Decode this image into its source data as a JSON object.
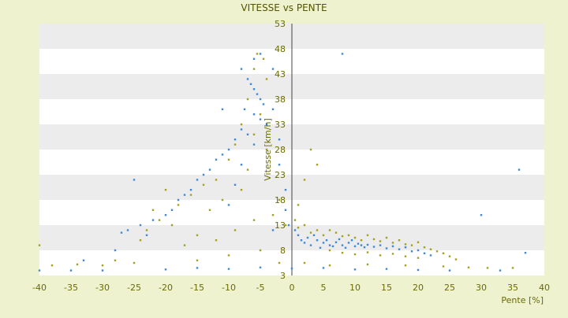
{
  "chart_data": {
    "type": "scatter",
    "title": "VITESSE vs PENTE",
    "xlabel": "Pente [%]",
    "ylabel": "Vitesse [km/h]",
    "xlim": [
      -40,
      40
    ],
    "ylim": [
      3,
      53
    ],
    "xticks": [
      "-40",
      "-35",
      "-30",
      "-25",
      "-20",
      "-15",
      "-10",
      "-5",
      "0",
      "5",
      "10",
      "15",
      "20",
      "25",
      "30",
      "35",
      "40"
    ],
    "yticks": [
      "3",
      "8",
      "13",
      "18",
      "23",
      "28",
      "33",
      "38",
      "43",
      "48",
      "53"
    ],
    "grid": "alternating horizontal bands",
    "legend": "none",
    "colors": {
      "series_a": "#3b8ad9",
      "series_b": "#a3a01f",
      "background": "#eef2cf",
      "band": "#ececec",
      "axis_text": "#6b6b00",
      "zero_line": "#444444"
    },
    "series": [
      {
        "color": "#3b8ad9",
        "points": [
          [
            -8,
            44
          ],
          [
            -7,
            42
          ],
          [
            -6.5,
            41
          ],
          [
            -6,
            40
          ],
          [
            -5.5,
            39
          ],
          [
            -5,
            38
          ],
          [
            -4.5,
            37
          ],
          [
            -7.5,
            36
          ],
          [
            -6,
            35
          ],
          [
            -5,
            34
          ],
          [
            -4,
            33
          ],
          [
            -8,
            32
          ],
          [
            -7,
            31
          ],
          [
            -9,
            30
          ],
          [
            -6,
            29
          ],
          [
            -10,
            28
          ],
          [
            -11,
            27
          ],
          [
            -12,
            26
          ],
          [
            -8,
            25
          ],
          [
            -13,
            24
          ],
          [
            -14,
            23
          ],
          [
            -15,
            22
          ],
          [
            -9,
            21
          ],
          [
            -16,
            20
          ],
          [
            -17,
            19
          ],
          [
            -18,
            18
          ],
          [
            -10,
            17
          ],
          [
            -19,
            16
          ],
          [
            -20,
            15
          ],
          [
            -22,
            14
          ],
          [
            -24,
            13
          ],
          [
            -26,
            12
          ],
          [
            -27,
            11.5
          ],
          [
            -25,
            22
          ],
          [
            -11,
            36
          ],
          [
            -6,
            46
          ],
          [
            -5,
            47
          ],
          [
            -3,
            44
          ],
          [
            -3,
            36
          ],
          [
            -2,
            30
          ],
          [
            -2,
            25
          ],
          [
            -1,
            20
          ],
          [
            -1,
            16
          ],
          [
            -0.5,
            13
          ],
          [
            0.5,
            12
          ],
          [
            1,
            11
          ],
          [
            1.5,
            10
          ],
          [
            2,
            9.5
          ],
          [
            2.5,
            10.5
          ],
          [
            3,
            9
          ],
          [
            3.5,
            11
          ],
          [
            4,
            10
          ],
          [
            4.5,
            8.5
          ],
          [
            5,
            9.5
          ],
          [
            5.5,
            10
          ],
          [
            6,
            9
          ],
          [
            6.5,
            8.8
          ],
          [
            7,
            9.6
          ],
          [
            7.5,
            10.2
          ],
          [
            8,
            9
          ],
          [
            8.5,
            8.5
          ],
          [
            9,
            9.5
          ],
          [
            9.5,
            10
          ],
          [
            10,
            8.8
          ],
          [
            10.5,
            9.3
          ],
          [
            11,
            9
          ],
          [
            11.5,
            8.6
          ],
          [
            12,
            9.1
          ],
          [
            13,
            8.7
          ],
          [
            14,
            9
          ],
          [
            15,
            8.4
          ],
          [
            16,
            8.8
          ],
          [
            17,
            8.2
          ],
          [
            18,
            8.6
          ],
          [
            19,
            7.8
          ],
          [
            20,
            8
          ],
          [
            21,
            7.4
          ],
          [
            22,
            7
          ],
          [
            8,
            47
          ],
          [
            36,
            24
          ],
          [
            30,
            15
          ],
          [
            37,
            7.5
          ],
          [
            25,
            4
          ],
          [
            -30,
            4
          ],
          [
            -35,
            4
          ],
          [
            -40,
            4
          ],
          [
            -20,
            4.2
          ],
          [
            -10,
            4.3
          ],
          [
            0,
            4.4
          ],
          [
            10,
            4.2
          ],
          [
            20,
            4.1
          ],
          [
            33,
            4
          ],
          [
            -33,
            6
          ],
          [
            -28,
            8
          ],
          [
            -23,
            11
          ],
          [
            -15,
            4.5
          ],
          [
            -5,
            4.6
          ],
          [
            5,
            4.5
          ],
          [
            15,
            4.3
          ],
          [
            -3,
            12
          ]
        ]
      },
      {
        "color": "#a3a01f",
        "points": [
          [
            -5.5,
            47
          ],
          [
            -4.5,
            46
          ],
          [
            -6,
            44
          ],
          [
            -4,
            42
          ],
          [
            -7,
            38
          ],
          [
            -5,
            35
          ],
          [
            -8,
            33
          ],
          [
            -6,
            31
          ],
          [
            -9,
            29
          ],
          [
            -4,
            28
          ],
          [
            -10,
            26
          ],
          [
            -7,
            24
          ],
          [
            -12,
            22
          ],
          [
            -14,
            21
          ],
          [
            -20,
            20
          ],
          [
            -16,
            19
          ],
          [
            -18,
            17
          ],
          [
            -22,
            16
          ],
          [
            -21,
            14
          ],
          [
            -19,
            13
          ],
          [
            -23,
            12
          ],
          [
            -24,
            10
          ],
          [
            -15,
            11
          ],
          [
            -12,
            10
          ],
          [
            -9,
            12
          ],
          [
            -6,
            14
          ],
          [
            -3,
            15
          ],
          [
            -2,
            18
          ],
          [
            -1,
            13
          ],
          [
            0.5,
            14
          ],
          [
            1,
            12.5
          ],
          [
            2,
            13
          ],
          [
            3,
            11.5
          ],
          [
            4,
            12
          ],
          [
            5,
            11
          ],
          [
            6,
            12
          ],
          [
            7,
            11.5
          ],
          [
            8,
            10.8
          ],
          [
            9,
            11
          ],
          [
            10,
            10.5
          ],
          [
            11,
            10
          ],
          [
            12,
            11
          ],
          [
            13,
            10.2
          ],
          [
            14,
            9.8
          ],
          [
            15,
            10.5
          ],
          [
            16,
            9.5
          ],
          [
            17,
            10
          ],
          [
            18,
            9.2
          ],
          [
            19,
            9
          ],
          [
            20,
            9.6
          ],
          [
            21,
            8.6
          ],
          [
            22,
            8.2
          ],
          [
            23,
            7.8
          ],
          [
            24,
            7.4
          ],
          [
            25,
            6.8
          ],
          [
            26,
            6.2
          ],
          [
            3,
            28
          ],
          [
            4,
            25
          ],
          [
            2,
            22
          ],
          [
            6,
            8
          ],
          [
            8,
            7.5
          ],
          [
            10,
            7.2
          ],
          [
            12,
            7.6
          ],
          [
            14,
            7
          ],
          [
            16,
            7.3
          ],
          [
            18,
            6.8
          ],
          [
            20,
            6.5
          ],
          [
            -15,
            6
          ],
          [
            -10,
            7
          ],
          [
            -5,
            8
          ],
          [
            -25,
            5.5
          ],
          [
            -30,
            5
          ],
          [
            -34,
            5.2
          ],
          [
            -38,
            5
          ],
          [
            -2,
            5.5
          ],
          [
            2,
            5.5
          ],
          [
            6,
            5
          ],
          [
            12,
            5.2
          ],
          [
            18,
            5
          ],
          [
            24,
            4.8
          ],
          [
            28,
            4.6
          ],
          [
            31,
            4.5
          ],
          [
            35,
            4.5
          ],
          [
            -40,
            9
          ],
          [
            -28,
            6
          ],
          [
            -11,
            18
          ],
          [
            -8,
            20
          ],
          [
            -13,
            16
          ],
          [
            -17,
            9
          ],
          [
            1,
            17
          ]
        ]
      }
    ]
  }
}
